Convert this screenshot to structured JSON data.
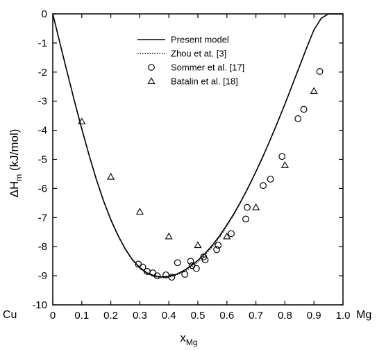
{
  "chart_data": {
    "type": "scatter",
    "xlabel": "x",
    "xlabel_sub": "Mg",
    "ylabel": "ΔH",
    "ylabel_sub": "m",
    "ylabel_unit": " (kJ/mol)",
    "xlim": [
      0,
      1
    ],
    "ylim": [
      -10,
      0
    ],
    "x_ticks": [
      0,
      0.1,
      0.2,
      0.3,
      0.4,
      0.5,
      0.6,
      0.7,
      0.8,
      0.9,
      1.0
    ],
    "x_tick_labels": [
      "0",
      "0.1",
      "0.2",
      "0.3",
      "0.4",
      "0.5",
      "0.6",
      "0.7",
      "0.8",
      "0.9",
      "1.0"
    ],
    "y_ticks": [
      0,
      -1,
      -2,
      -3,
      -4,
      -5,
      -6,
      -7,
      -8,
      -9,
      -10
    ],
    "y_tick_labels": [
      "0",
      "-1",
      "-2",
      "-3",
      "-4",
      "-5",
      "-6",
      "-7",
      "-8",
      "-9",
      "-10"
    ],
    "left_end_label": "Cu",
    "right_end_label": "Mg",
    "grid": false,
    "legend_position": "top-center",
    "series": [
      {
        "name": "Present model",
        "kind": "line",
        "style": "solid",
        "x": [
          0,
          0.025,
          0.05,
          0.075,
          0.1,
          0.125,
          0.15,
          0.175,
          0.2,
          0.225,
          0.25,
          0.275,
          0.3,
          0.325,
          0.35,
          0.375,
          0.4,
          0.425,
          0.45,
          0.475,
          0.5,
          0.525,
          0.55,
          0.575,
          0.6,
          0.625,
          0.65,
          0.675,
          0.7,
          0.725,
          0.75,
          0.775,
          0.8,
          0.825,
          0.85,
          0.875,
          0.9,
          0.925,
          0.95,
          0.975,
          1.0
        ],
        "y": [
          0,
          -1.02,
          -2.02,
          -3.0,
          -3.95,
          -4.85,
          -5.68,
          -6.42,
          -7.07,
          -7.62,
          -8.08,
          -8.45,
          -8.72,
          -8.9,
          -9.0,
          -9.04,
          -9.02,
          -8.95,
          -8.83,
          -8.67,
          -8.47,
          -8.23,
          -7.95,
          -7.62,
          -7.25,
          -6.85,
          -6.41,
          -5.93,
          -5.42,
          -4.88,
          -4.31,
          -3.72,
          -3.1,
          -2.46,
          -1.81,
          -1.16,
          -0.55,
          -0.15,
          0,
          0,
          0
        ]
      },
      {
        "name": "Zhou et at. [3]",
        "kind": "line",
        "style": "dotted",
        "x": [
          0,
          0.025,
          0.05,
          0.075,
          0.1,
          0.125,
          0.15,
          0.175,
          0.2,
          0.225,
          0.25,
          0.275,
          0.3,
          0.325,
          0.35,
          0.375,
          0.4,
          0.425,
          0.45,
          0.475,
          0.5,
          0.525,
          0.55,
          0.575,
          0.6,
          0.625,
          0.65,
          0.675,
          0.7,
          0.725,
          0.75,
          0.775,
          0.8,
          0.825,
          0.85,
          0.875,
          0.9,
          0.925,
          0.95,
          0.975,
          1.0
        ],
        "y": [
          0,
          -1.03,
          -2.04,
          -3.02,
          -3.97,
          -4.87,
          -5.7,
          -6.44,
          -7.09,
          -7.64,
          -8.1,
          -8.47,
          -8.74,
          -8.93,
          -9.03,
          -9.07,
          -9.05,
          -8.98,
          -8.87,
          -8.72,
          -8.53,
          -8.29,
          -8.0,
          -7.67,
          -7.29,
          -6.88,
          -6.43,
          -5.95,
          -5.43,
          -4.89,
          -4.31,
          -3.71,
          -3.09,
          -2.45,
          -1.8,
          -1.15,
          -0.55,
          -0.15,
          0,
          0,
          0
        ]
      },
      {
        "name": "Sommer et al. [17]",
        "kind": "points",
        "marker": "circle",
        "x": [
          0.295,
          0.31,
          0.325,
          0.345,
          0.36,
          0.39,
          0.41,
          0.43,
          0.455,
          0.475,
          0.48,
          0.495,
          0.52,
          0.525,
          0.565,
          0.57,
          0.615,
          0.665,
          0.67,
          0.725,
          0.75,
          0.79,
          0.845,
          0.865,
          0.92
        ],
        "y": [
          -8.6,
          -8.7,
          -8.85,
          -8.9,
          -9.0,
          -8.97,
          -9.05,
          -8.55,
          -8.95,
          -8.5,
          -8.65,
          -8.75,
          -8.35,
          -8.45,
          -8.1,
          -7.95,
          -7.55,
          -7.05,
          -6.65,
          -5.9,
          -5.68,
          -4.9,
          -3.6,
          -3.28,
          -1.98
        ]
      },
      {
        "name": "Batalin et al. [18]",
        "kind": "points",
        "marker": "triangle",
        "x": [
          0.1,
          0.2,
          0.3,
          0.4,
          0.5,
          0.6,
          0.7,
          0.8,
          0.9
        ],
        "y": [
          -3.7,
          -5.6,
          -6.8,
          -7.65,
          -7.95,
          -7.65,
          -6.65,
          -5.2,
          -2.65
        ]
      }
    ]
  }
}
